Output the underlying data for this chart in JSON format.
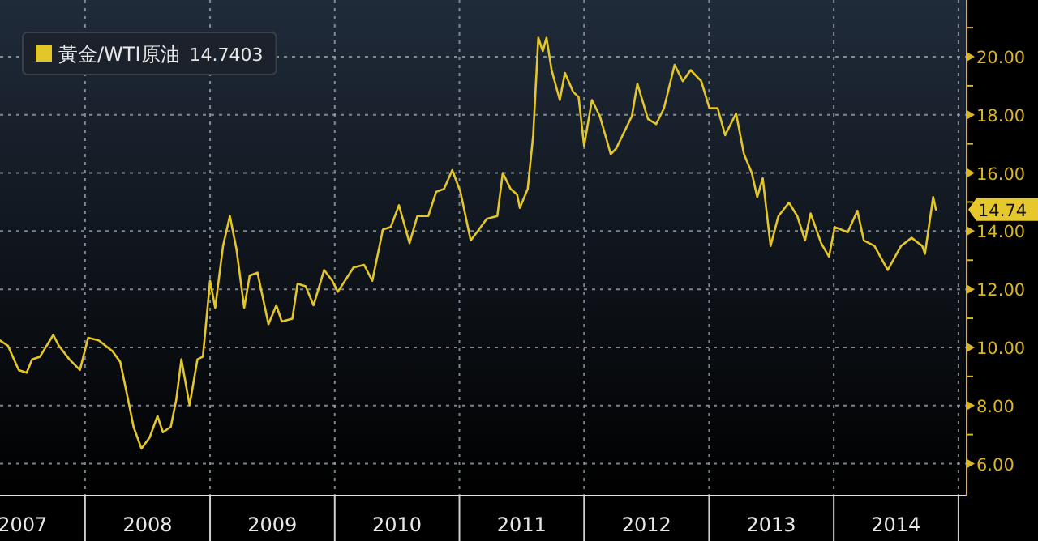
{
  "chart_data": {
    "type": "line",
    "x": [
      "2007-04-27",
      "2007-05-20",
      "2007-06-21",
      "2007-07-14",
      "2007-07-30",
      "2007-08-22",
      "2007-09-30",
      "2007-10-16",
      "2007-11-16",
      "2007-12-17",
      "2008-01-10",
      "2008-02-10",
      "2008-03-21",
      "2008-04-13",
      "2008-05-06",
      "2008-05-22",
      "2008-06-14",
      "2008-07-08",
      "2008-07-31",
      "2008-08-16",
      "2008-09-08",
      "2008-09-24",
      "2008-10-09",
      "2008-11-02",
      "2008-11-25",
      "2008-12-11",
      "2009-01-01",
      "2009-01-16",
      "2009-02-08",
      "2009-02-28",
      "2009-03-19",
      "2009-04-11",
      "2009-04-27",
      "2009-05-20",
      "2009-06-21",
      "2009-07-14",
      "2009-07-30",
      "2009-08-30",
      "2009-09-14",
      "2009-10-08",
      "2009-10-31",
      "2009-12-01",
      "2009-12-25",
      "2010-01-10",
      "2010-02-25",
      "2010-03-28",
      "2010-04-21",
      "2010-05-22",
      "2010-06-14",
      "2010-07-08",
      "2010-08-08",
      "2010-08-31",
      "2010-10-02",
      "2010-10-25",
      "2010-11-17",
      "2010-12-11",
      "2011-01-04",
      "2011-02-03",
      "2011-02-27",
      "2011-03-22",
      "2011-04-22",
      "2011-05-08",
      "2011-05-31",
      "2011-06-19",
      "2011-06-27",
      "2011-07-20",
      "2011-08-05",
      "2011-08-20",
      "2011-09-02",
      "2011-09-13",
      "2011-09-28",
      "2011-10-22",
      "2011-11-06",
      "2011-11-30",
      "2011-12-16",
      "2012-01-01",
      "2012-01-24",
      "2012-02-16",
      "2012-03-19",
      "2012-04-04",
      "2012-05-20",
      "2012-06-05",
      "2012-07-06",
      "2012-07-30",
      "2012-08-22",
      "2012-09-22",
      "2012-10-16",
      "2012-11-08",
      "2012-12-09",
      "2013-01-02",
      "2013-01-26",
      "2013-02-17",
      "2013-03-21",
      "2013-04-13",
      "2013-05-06",
      "2013-05-22",
      "2013-06-07",
      "2013-06-30",
      "2013-07-23",
      "2013-08-23",
      "2013-09-16",
      "2013-10-09",
      "2013-10-25",
      "2013-11-25",
      "2013-12-18",
      "2014-01-04",
      "2014-02-11",
      "2014-03-11",
      "2014-03-30",
      "2014-04-30",
      "2014-06-08",
      "2014-07-17",
      "2014-08-17",
      "2014-09-17",
      "2014-09-25",
      "2014-10-19",
      "2014-10-27"
    ],
    "series": [
      {
        "name": "黃金/WTI原油",
        "color": "#e3c62a",
        "values": [
          10.24,
          10.06,
          9.22,
          9.13,
          9.59,
          9.68,
          10.43,
          10.06,
          9.59,
          9.22,
          10.33,
          10.24,
          9.87,
          9.5,
          8.2,
          7.27,
          6.52,
          6.9,
          7.64,
          7.08,
          7.27,
          8.2,
          9.59,
          8.01,
          9.59,
          9.68,
          12.29,
          11.36,
          13.49,
          14.52,
          13.4,
          11.36,
          12.47,
          12.57,
          10.8,
          11.45,
          10.89,
          10.99,
          12.19,
          12.1,
          11.45,
          12.66,
          12.29,
          11.91,
          12.75,
          12.84,
          12.29,
          14.05,
          14.14,
          14.89,
          13.59,
          14.52,
          14.52,
          15.35,
          15.45,
          16.1,
          15.35,
          13.68,
          14.05,
          14.42,
          14.52,
          16.0,
          15.45,
          15.26,
          14.8,
          15.45,
          17.3,
          20.65,
          20.19,
          20.65,
          19.54,
          18.51,
          19.44,
          18.79,
          18.61,
          16.93,
          18.51,
          17.96,
          16.65,
          16.84,
          17.96,
          19.07,
          17.86,
          17.68,
          18.23,
          19.72,
          19.16,
          19.54,
          19.16,
          18.23,
          18.23,
          17.3,
          18.05,
          16.65,
          16.0,
          15.17,
          15.82,
          13.49,
          14.52,
          14.98,
          14.52,
          13.68,
          14.61,
          13.59,
          13.12,
          14.14,
          13.96,
          14.7,
          13.68,
          13.49,
          12.66,
          13.49,
          13.77,
          13.49,
          13.22,
          15.17,
          14.74
        ]
      }
    ],
    "xlim": [
      "2007-04-27",
      "2015-01-25"
    ],
    "xticks": [
      {
        "value": "2007-07-02",
        "label": "2007"
      },
      {
        "value": "2008-01-01",
        "label": null
      },
      {
        "value": "2008-07-02",
        "label": "2008"
      },
      {
        "value": "2009-01-01",
        "label": null
      },
      {
        "value": "2009-07-02",
        "label": "2009"
      },
      {
        "value": "2010-01-01",
        "label": null
      },
      {
        "value": "2010-07-02",
        "label": "2010"
      },
      {
        "value": "2011-01-01",
        "label": null
      },
      {
        "value": "2011-07-02",
        "label": "2011"
      },
      {
        "value": "2012-01-01",
        "label": null
      },
      {
        "value": "2012-07-02",
        "label": "2012"
      },
      {
        "value": "2013-01-01",
        "label": null
      },
      {
        "value": "2013-07-02",
        "label": "2013"
      },
      {
        "value": "2014-01-01",
        "label": null
      },
      {
        "value": "2014-07-02",
        "label": "2014"
      },
      {
        "value": "2015-01-01",
        "label": null
      }
    ],
    "ylim": [
      4.9,
      21.95
    ],
    "yticks": [
      {
        "value": 6,
        "label": "6.00"
      },
      {
        "value": 7,
        "label": null
      },
      {
        "value": 8,
        "label": "8.00"
      },
      {
        "value": 9,
        "label": null
      },
      {
        "value": 10,
        "label": "10.00"
      },
      {
        "value": 11,
        "label": null
      },
      {
        "value": 12,
        "label": "12.00"
      },
      {
        "value": 13,
        "label": null
      },
      {
        "value": 14,
        "label": "14.00"
      },
      {
        "value": 15,
        "label": null
      },
      {
        "value": 16,
        "label": "16.00"
      },
      {
        "value": 17,
        "label": null
      },
      {
        "value": 18,
        "label": "18.00"
      },
      {
        "value": 19,
        "label": null
      },
      {
        "value": 20,
        "label": "20.00"
      },
      {
        "value": 21,
        "label": null
      }
    ],
    "annotations": [
      "14.7403",
      {
        "text": "14.74",
        "x": "2014-10-27",
        "y": 14.74
      }
    ],
    "grid": true,
    "legend": "top left",
    "line_style": "solid",
    "marker": "none"
  }
}
